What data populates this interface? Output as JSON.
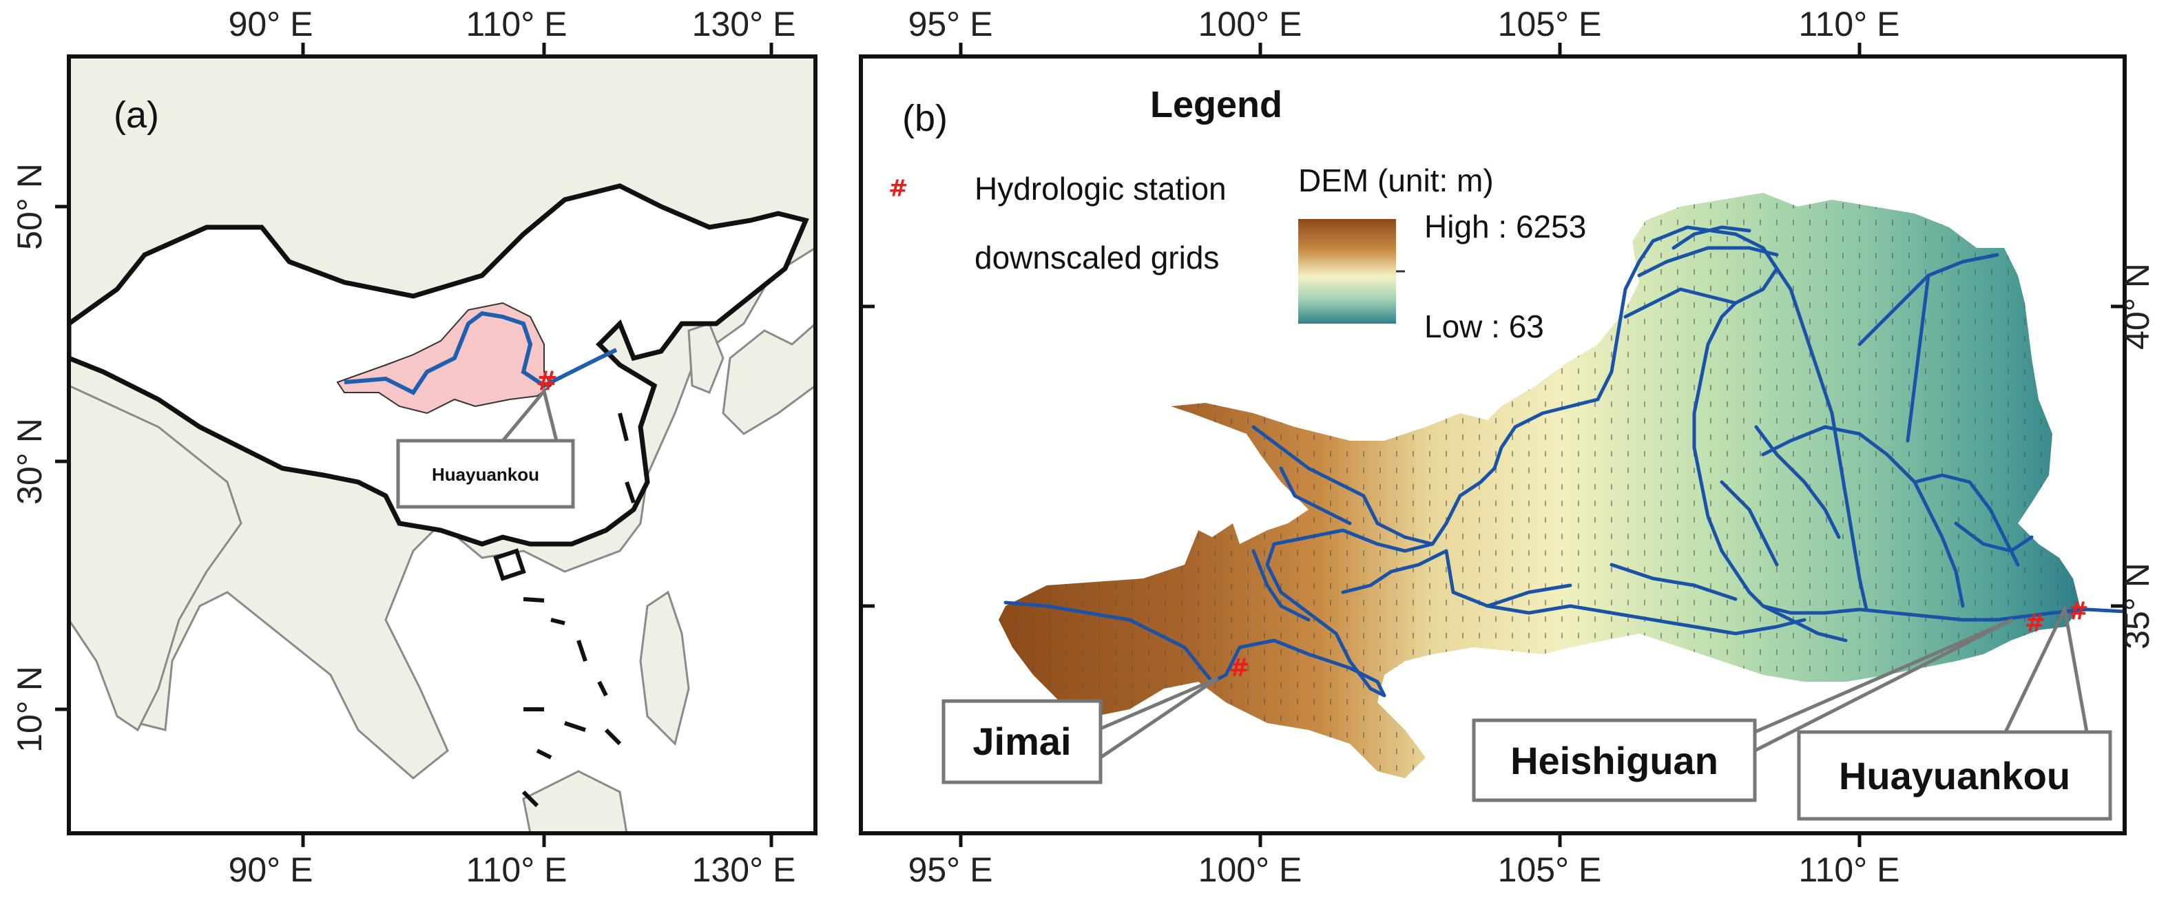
{
  "panel_a": {
    "label": "(a)",
    "top_ticks": [
      "90° E",
      "110° E",
      "130° E"
    ],
    "bottom_ticks": [
      "90° E",
      "110° E",
      "130° E"
    ],
    "left_ticks": [
      "50° N",
      "30° N",
      "10° N"
    ],
    "callout": "Huayuankou",
    "colors": {
      "ocean": "#ffffff",
      "land": "#eef0e6",
      "china": "#ffffff",
      "basin": "#f7c6c6",
      "river": "#1f5fb0"
    }
  },
  "panel_b": {
    "label": "(b)",
    "top_ticks": [
      "95° E",
      "100° E",
      "105° E",
      "110° E"
    ],
    "bottom_ticks": [
      "95° E",
      "100° E",
      "105° E",
      "110° E"
    ],
    "right_ticks": [
      "40° N",
      "35° N"
    ],
    "legend": {
      "title": "Legend",
      "station_symbol": "#",
      "station_label": "Hydrologic station",
      "grid_label": "downscaled grids",
      "dem_title": "DEM (unit: m)",
      "dem_high": "High : 6253",
      "dem_low": "Low : 63",
      "dem_colors": [
        "#8c4a1a",
        "#c98c45",
        "#e8d79a",
        "#f4f1c4",
        "#9ccfb3",
        "#2f7f8a"
      ]
    },
    "stations": [
      {
        "name": "Jimai",
        "lon": 99.65,
        "lat": 33.97
      },
      {
        "name": "Heishiguan",
        "lon": 112.93,
        "lat": 34.72
      },
      {
        "name": "Huayuankou",
        "lon": 113.65,
        "lat": 34.92
      }
    ],
    "colors": {
      "river": "#1a52a8",
      "station": "#e8201c"
    }
  }
}
